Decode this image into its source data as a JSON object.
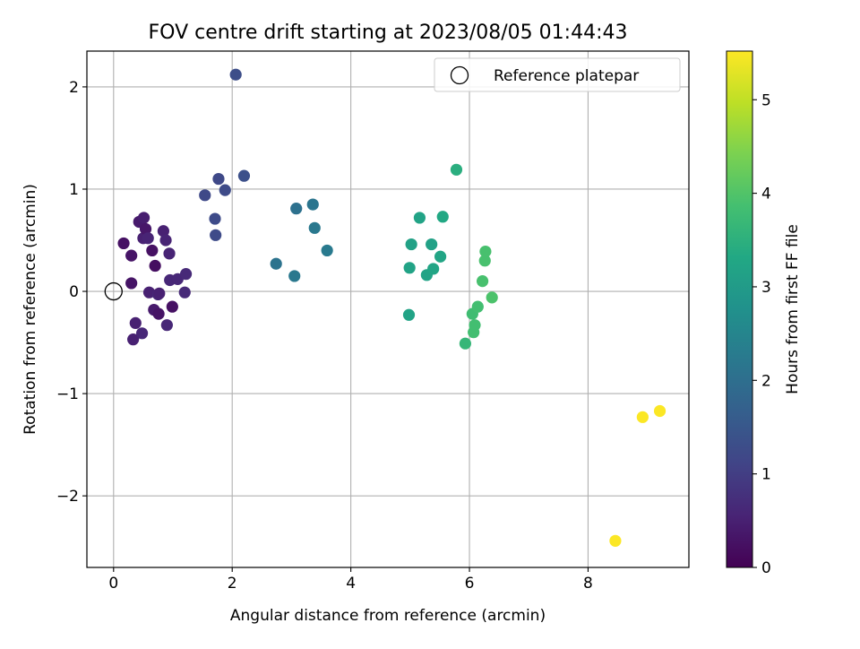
{
  "chart_data": {
    "type": "scatter",
    "title": "FOV centre drift starting at 2023/08/05 01:44:43",
    "xlabel": "Angular distance from reference (arcmin)",
    "ylabel": "Rotation from reference (arcmin)",
    "xlim": [
      -0.45,
      9.7
    ],
    "ylim": [
      -2.7,
      2.35
    ],
    "x_ticks": [
      0,
      2,
      4,
      6,
      8
    ],
    "y_ticks": [
      -2,
      -1,
      0,
      1,
      2
    ],
    "x_tick_labels": [
      "0",
      "2",
      "4",
      "6",
      "8"
    ],
    "y_tick_labels": [
      "−2",
      "−1",
      "0",
      "1",
      "2"
    ],
    "grid": true,
    "legend_position": "top-right",
    "reference": {
      "name": "Reference platepar",
      "x": 0,
      "y": 0
    },
    "colorbar": {
      "label": "Hours from first FF file",
      "range": [
        0,
        5.52
      ],
      "ticks": [
        0,
        1,
        2,
        3,
        4,
        5
      ],
      "tick_labels": [
        "0",
        "1",
        "2",
        "3",
        "4",
        "5"
      ],
      "colormap": "viridis"
    },
    "points": [
      {
        "x": 0.17,
        "y": 0.47,
        "h": 0.25
      },
      {
        "x": 0.3,
        "y": 0.08,
        "h": 0.3
      },
      {
        "x": 0.3,
        "y": 0.35,
        "h": 0.3
      },
      {
        "x": 0.33,
        "y": -0.47,
        "h": 0.5
      },
      {
        "x": 0.37,
        "y": -0.31,
        "h": 0.5
      },
      {
        "x": 0.43,
        "y": 0.68,
        "h": 0.4
      },
      {
        "x": 0.48,
        "y": -0.41,
        "h": 0.6
      },
      {
        "x": 0.5,
        "y": 0.52,
        "h": 0.5
      },
      {
        "x": 0.51,
        "y": 0.72,
        "h": 0.45
      },
      {
        "x": 0.54,
        "y": 0.61,
        "h": 0.35
      },
      {
        "x": 0.58,
        "y": 0.52,
        "h": 0.55
      },
      {
        "x": 0.6,
        "y": -0.01,
        "h": 0.5
      },
      {
        "x": 0.65,
        "y": 0.4,
        "h": 0.25
      },
      {
        "x": 0.68,
        "y": -0.18,
        "h": 0.4
      },
      {
        "x": 0.7,
        "y": 0.25,
        "h": 0.2
      },
      {
        "x": 0.75,
        "y": -0.03,
        "h": 0.6
      },
      {
        "x": 0.76,
        "y": -0.22,
        "h": 0.3
      },
      {
        "x": 0.77,
        "y": -0.02,
        "h": 0.5
      },
      {
        "x": 0.84,
        "y": 0.59,
        "h": 0.5
      },
      {
        "x": 0.88,
        "y": 0.5,
        "h": 0.55
      },
      {
        "x": 0.9,
        "y": -0.33,
        "h": 0.6
      },
      {
        "x": 0.94,
        "y": 0.37,
        "h": 0.55
      },
      {
        "x": 0.95,
        "y": 0.11,
        "h": 0.6
      },
      {
        "x": 0.99,
        "y": -0.15,
        "h": 0.25
      },
      {
        "x": 1.08,
        "y": 0.12,
        "h": 0.6
      },
      {
        "x": 1.2,
        "y": -0.01,
        "h": 0.65
      },
      {
        "x": 1.22,
        "y": 0.17,
        "h": 0.65
      },
      {
        "x": 1.54,
        "y": 0.94,
        "h": 1.2
      },
      {
        "x": 1.71,
        "y": 0.71,
        "h": 1.25
      },
      {
        "x": 1.72,
        "y": 0.55,
        "h": 1.25
      },
      {
        "x": 1.77,
        "y": 1.1,
        "h": 1.2
      },
      {
        "x": 1.88,
        "y": 0.99,
        "h": 1.25
      },
      {
        "x": 2.06,
        "y": 2.12,
        "h": 1.3
      },
      {
        "x": 2.2,
        "y": 1.13,
        "h": 1.35
      },
      {
        "x": 2.74,
        "y": 0.27,
        "h": 2.1
      },
      {
        "x": 3.05,
        "y": 0.15,
        "h": 2.2
      },
      {
        "x": 3.08,
        "y": 0.81,
        "h": 2.05
      },
      {
        "x": 3.36,
        "y": 0.85,
        "h": 2.15
      },
      {
        "x": 3.39,
        "y": 0.62,
        "h": 2.2
      },
      {
        "x": 3.6,
        "y": 0.4,
        "h": 2.25
      },
      {
        "x": 4.98,
        "y": -0.23,
        "h": 3.2
      },
      {
        "x": 4.99,
        "y": 0.23,
        "h": 3.2
      },
      {
        "x": 5.02,
        "y": 0.46,
        "h": 3.15
      },
      {
        "x": 5.16,
        "y": 0.72,
        "h": 3.2
      },
      {
        "x": 5.28,
        "y": 0.16,
        "h": 3.2
      },
      {
        "x": 5.36,
        "y": 0.46,
        "h": 3.15
      },
      {
        "x": 5.39,
        "y": 0.22,
        "h": 3.25
      },
      {
        "x": 5.51,
        "y": 0.34,
        "h": 3.25
      },
      {
        "x": 5.55,
        "y": 0.73,
        "h": 3.3
      },
      {
        "x": 5.78,
        "y": 1.19,
        "h": 3.45
      },
      {
        "x": 5.93,
        "y": -0.51,
        "h": 3.65
      },
      {
        "x": 6.05,
        "y": -0.22,
        "h": 3.8
      },
      {
        "x": 6.07,
        "y": -0.4,
        "h": 3.85
      },
      {
        "x": 6.09,
        "y": -0.33,
        "h": 3.85
      },
      {
        "x": 6.14,
        "y": -0.15,
        "h": 3.85
      },
      {
        "x": 6.22,
        "y": 0.1,
        "h": 3.9
      },
      {
        "x": 6.26,
        "y": 0.3,
        "h": 3.9
      },
      {
        "x": 6.27,
        "y": 0.39,
        "h": 3.9
      },
      {
        "x": 6.38,
        "y": -0.06,
        "h": 3.95
      },
      {
        "x": 8.46,
        "y": -2.44,
        "h": 5.5
      },
      {
        "x": 8.92,
        "y": -1.23,
        "h": 5.5
      },
      {
        "x": 9.21,
        "y": -1.17,
        "h": 5.5
      }
    ]
  }
}
